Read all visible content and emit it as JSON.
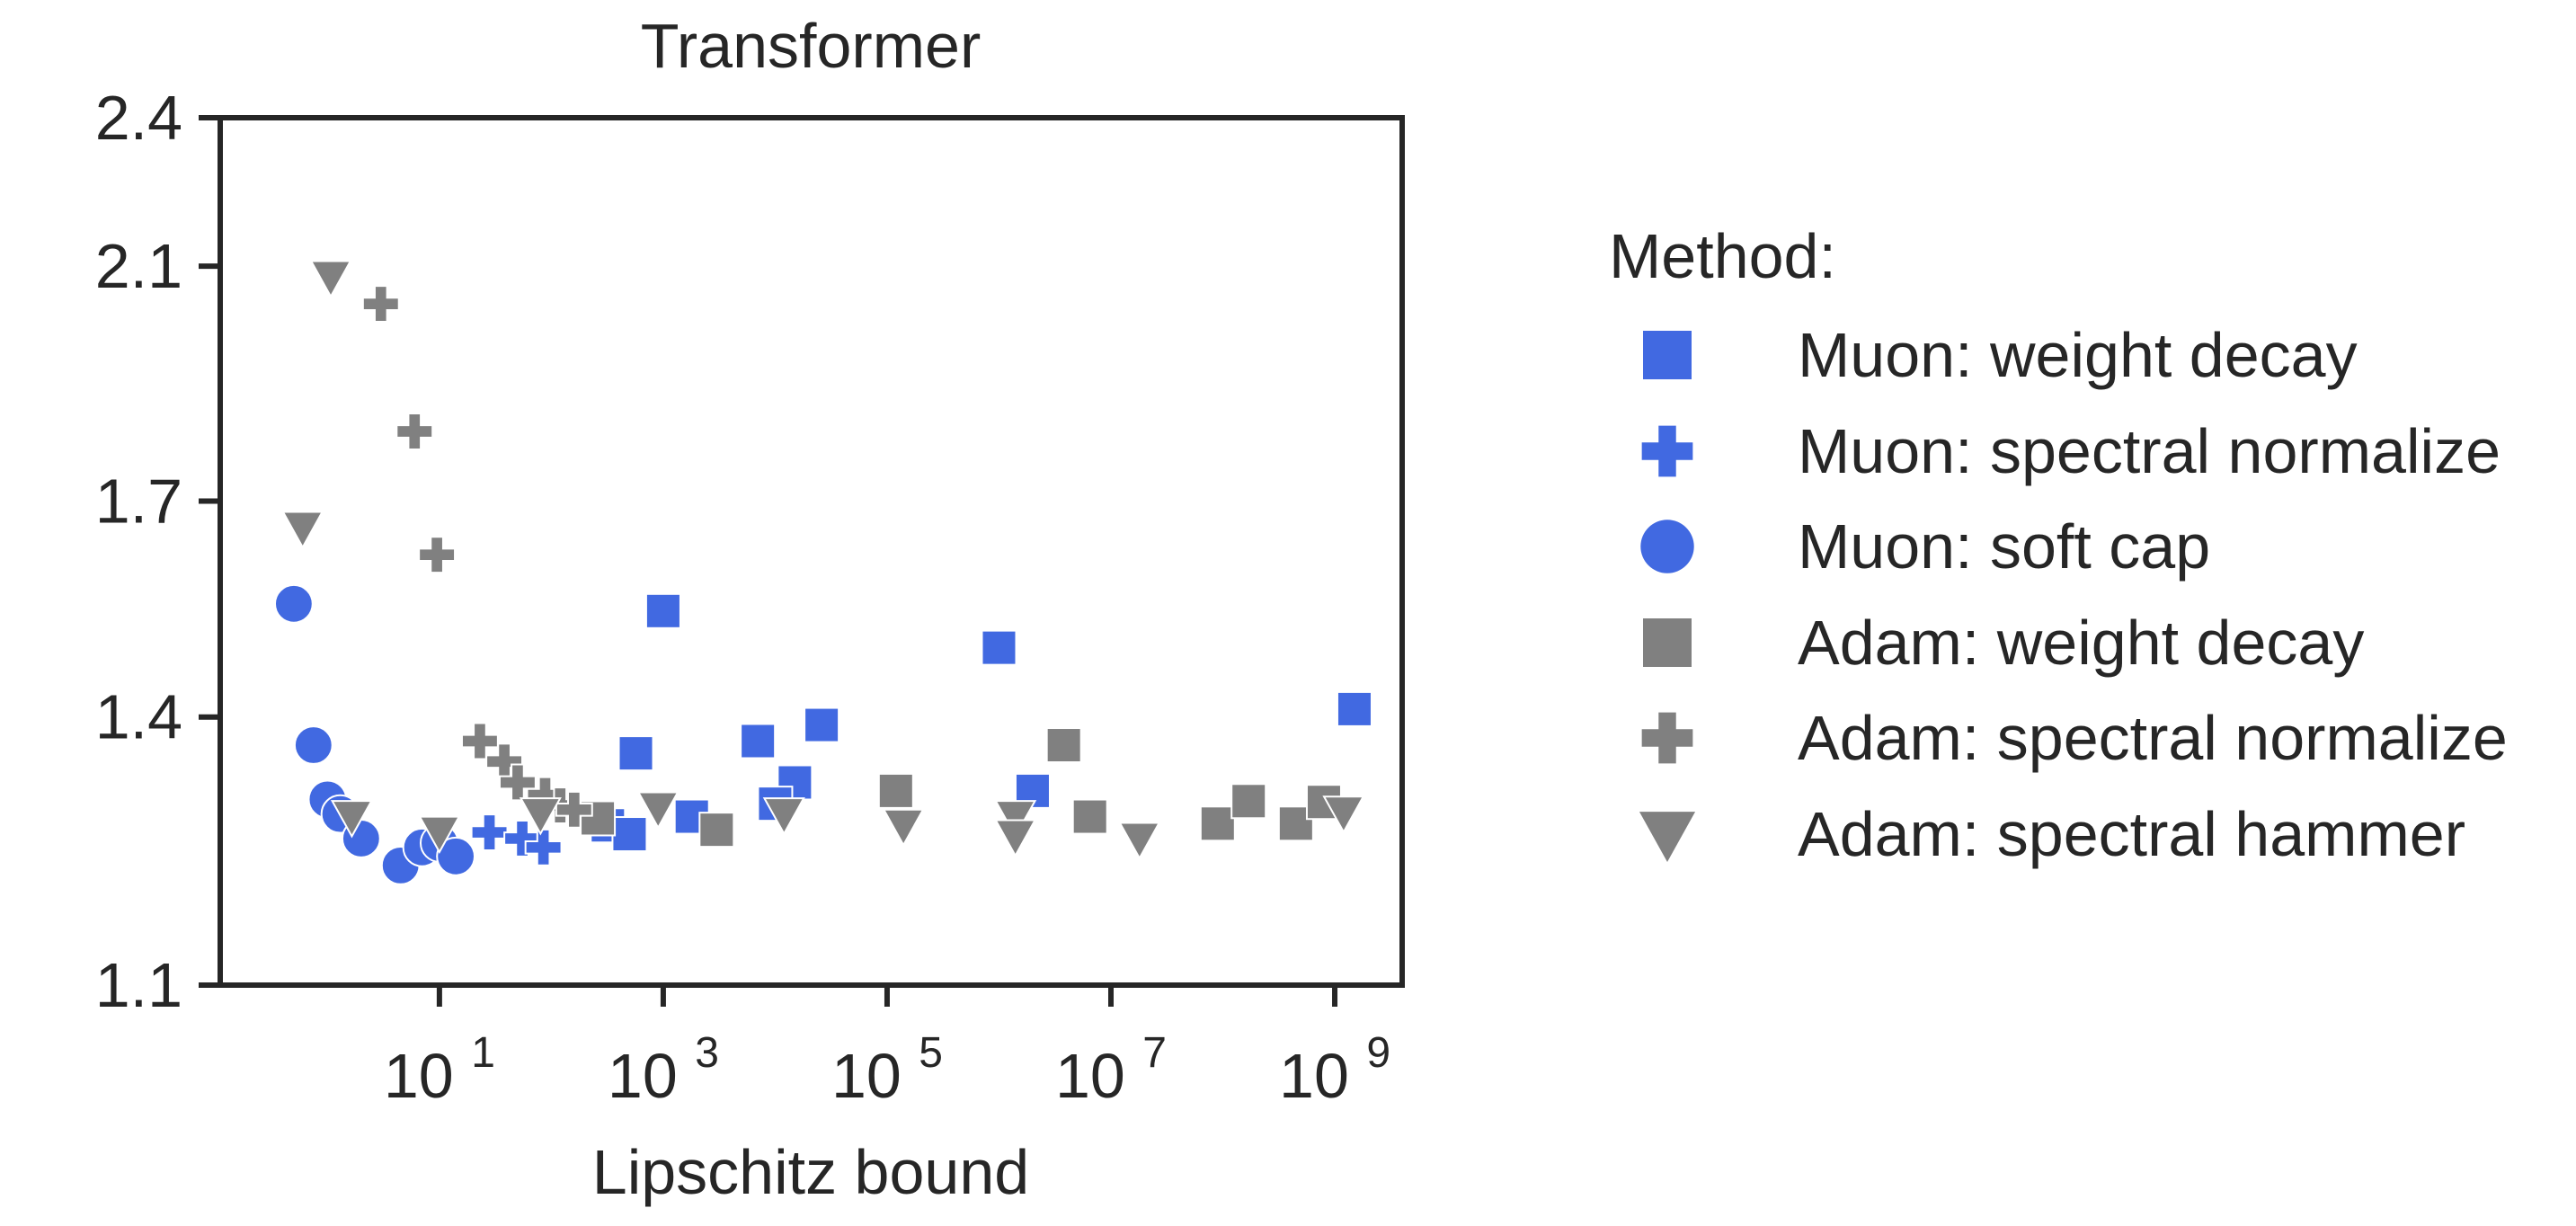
{
  "chart_data": {
    "type": "scatter",
    "title": "Transformer",
    "xlabel": "Lipschitz bound",
    "ylabel": "",
    "x_scale": "log",
    "xlim": [
      0.11,
      4000000000
    ],
    "ylim": [
      1.1,
      2.4
    ],
    "y_scale": "log",
    "xticks": [
      {
        "value": 10,
        "base": "10",
        "exp": "1"
      },
      {
        "value": 1000,
        "base": "10",
        "exp": "3"
      },
      {
        "value": 100000,
        "base": "10",
        "exp": "5"
      },
      {
        "value": 10000000,
        "base": "10",
        "exp": "7"
      },
      {
        "value": 1000000000,
        "base": "10",
        "exp": "9"
      }
    ],
    "yticks": [
      {
        "value": 1.1,
        "label": "1.1"
      },
      {
        "value": 1.4,
        "label": "1.4"
      },
      {
        "value": 1.7,
        "label": "1.7"
      },
      {
        "value": 2.1,
        "label": "2.1"
      },
      {
        "value": 2.4,
        "label": "2.4"
      }
    ],
    "grid": false,
    "legend_title": "Method:",
    "legend_position": "right",
    "series": [
      {
        "name": "Muon: weight decay",
        "marker": "square",
        "color": "#4169E1",
        "points": [
          [
            1000,
            1.54
          ],
          [
            570,
            1.355
          ],
          [
            7000,
            1.37
          ],
          [
            26000,
            1.39
          ],
          [
            15000,
            1.32
          ],
          [
            10000,
            1.295
          ],
          [
            1800,
            1.28
          ],
          [
            320,
            1.27
          ],
          [
            500,
            1.26
          ],
          [
            1000000,
            1.49
          ],
          [
            2000000,
            1.31
          ],
          [
            1500000000,
            1.41
          ]
        ]
      },
      {
        "name": "Muon: spectral normalize",
        "marker": "plus",
        "color": "#4169E1",
        "points": [
          [
            28,
            1.262
          ],
          [
            55,
            1.255
          ],
          [
            85,
            1.245
          ]
        ]
      },
      {
        "name": "Muon: soft cap",
        "marker": "circle",
        "color": "#4169E1",
        "points": [
          [
            0.5,
            1.55
          ],
          [
            0.75,
            1.365
          ],
          [
            1,
            1.3
          ],
          [
            1.3,
            1.283
          ],
          [
            2,
            1.255
          ],
          [
            4.5,
            1.225
          ],
          [
            7,
            1.245
          ],
          [
            10,
            1.25
          ],
          [
            14,
            1.235
          ]
        ]
      },
      {
        "name": "Adam: weight decay",
        "marker": "square",
        "color": "#808080",
        "points": [
          [
            260,
            1.278
          ],
          [
            3000,
            1.265
          ],
          [
            120000,
            1.31
          ],
          [
            3800000,
            1.365
          ],
          [
            6500000,
            1.28
          ],
          [
            90000000,
            1.272
          ],
          [
            170000000,
            1.298
          ],
          [
            450000000,
            1.272
          ],
          [
            800000000,
            1.297
          ]
        ]
      },
      {
        "name": "Adam: spectral normalize",
        "marker": "plus",
        "color": "#808080",
        "points": [
          [
            3,
            2.03
          ],
          [
            6,
            1.81
          ],
          [
            9.5,
            1.62
          ],
          [
            23,
            1.37
          ],
          [
            38,
            1.345
          ],
          [
            50,
            1.32
          ],
          [
            88,
            1.305
          ],
          [
            120,
            1.293
          ],
          [
            160,
            1.288
          ]
        ]
      },
      {
        "name": "Adam: spectral hammer",
        "marker": "triangle",
        "color": "#808080",
        "points": [
          [
            1.07,
            2.08
          ],
          [
            0.6,
            1.66
          ],
          [
            1.65,
            1.28
          ],
          [
            10,
            1.262
          ],
          [
            80,
            1.283
          ],
          [
            900,
            1.29
          ],
          [
            12000,
            1.283
          ],
          [
            140000,
            1.27
          ],
          [
            1400000,
            1.28
          ],
          [
            1400000,
            1.258
          ],
          [
            18000000,
            1.255
          ],
          [
            1200000000,
            1.285
          ]
        ]
      }
    ]
  }
}
